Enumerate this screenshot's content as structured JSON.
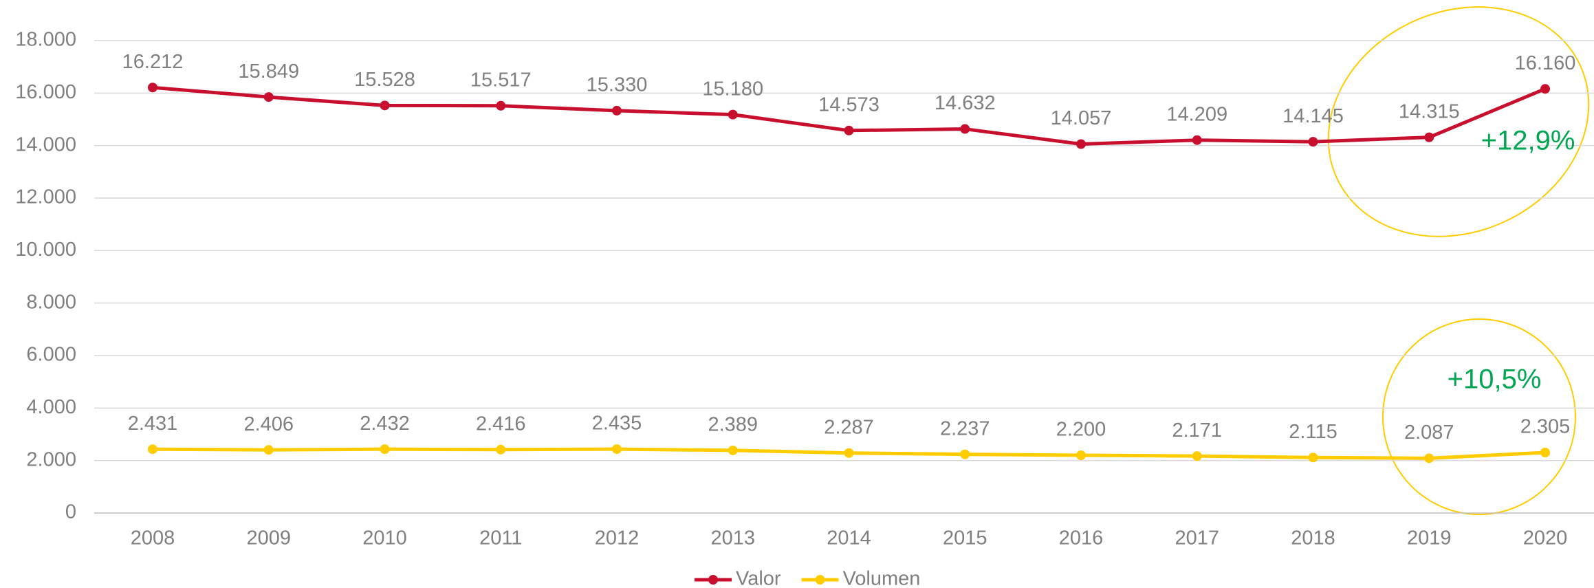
{
  "chart_data": {
    "type": "line",
    "categories": [
      "2008",
      "2009",
      "2010",
      "2011",
      "2012",
      "2013",
      "2014",
      "2015",
      "2016",
      "2017",
      "2018",
      "2019",
      "2020"
    ],
    "series": [
      {
        "name": "Valor",
        "color": "#c8102e",
        "values": [
          16212,
          15849,
          15528,
          15517,
          15330,
          15180,
          14573,
          14632,
          14057,
          14209,
          14145,
          14315,
          16160
        ],
        "value_labels": [
          "16.212",
          "15.849",
          "15.528",
          "15.517",
          "15.330",
          "15.180",
          "14.573",
          "14.632",
          "14.057",
          "14.209",
          "14.145",
          "14.315",
          "16.160"
        ]
      },
      {
        "name": "Volumen",
        "color": "#ffcc00",
        "values": [
          2431,
          2406,
          2432,
          2416,
          2435,
          2389,
          2287,
          2237,
          2200,
          2171,
          2115,
          2087,
          2305
        ],
        "value_labels": [
          "2.431",
          "2.406",
          "2.432",
          "2.416",
          "2.435",
          "2.389",
          "2.287",
          "2.237",
          "2.200",
          "2.171",
          "2.115",
          "2.087",
          "2.305"
        ]
      }
    ],
    "ylim": [
      0,
      18000
    ],
    "yticks": [
      0,
      {
        "value": 2000,
        "label": "2.000"
      },
      {
        "value": 4000,
        "label": "4.000"
      },
      {
        "value": 6000,
        "label": "6.000"
      },
      {
        "value": 8000,
        "label": "8.000"
      },
      {
        "value": 10000,
        "label": "10.000"
      },
      {
        "value": 12000,
        "label": "12.000"
      },
      {
        "value": 14000,
        "label": "14.000"
      },
      {
        "value": 16000,
        "label": "16.000"
      },
      {
        "value": 18000,
        "label": "18.000"
      }
    ],
    "grid": true,
    "legend": "bottom",
    "annotations": [
      {
        "text": "+12,9%",
        "color": "#00a650"
      },
      {
        "text": "+10,5%",
        "color": "#00a650"
      }
    ]
  }
}
